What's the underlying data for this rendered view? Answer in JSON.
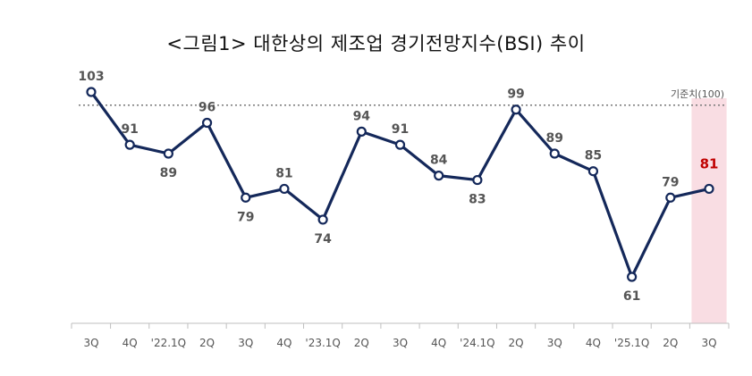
{
  "chart_data": {
    "type": "line",
    "title": "<그림1> 대한상의 제조업 경기전망지수(BSI) 추이",
    "categories": [
      "3Q",
      "4Q",
      "'22.1Q",
      "2Q",
      "3Q",
      "4Q",
      "'23.1Q",
      "2Q",
      "3Q",
      "4Q",
      "'24.1Q",
      "2Q",
      "3Q",
      "4Q",
      "'25.1Q",
      "2Q",
      "3Q"
    ],
    "series": [
      {
        "values": [
          103,
          91,
          89,
          96,
          79,
          81,
          74,
          94,
          91,
          84,
          83,
          99,
          89,
          85,
          61,
          79,
          81
        ]
      }
    ],
    "reference_line": {
      "label": "기준치(100)",
      "value": 100
    },
    "highlight": {
      "category_index": 16,
      "label_color": "#c00000",
      "band_color": "#f9dde3"
    },
    "line_color": "#14285a",
    "ylim": [
      54,
      106
    ],
    "grid": false,
    "legend": "none"
  }
}
